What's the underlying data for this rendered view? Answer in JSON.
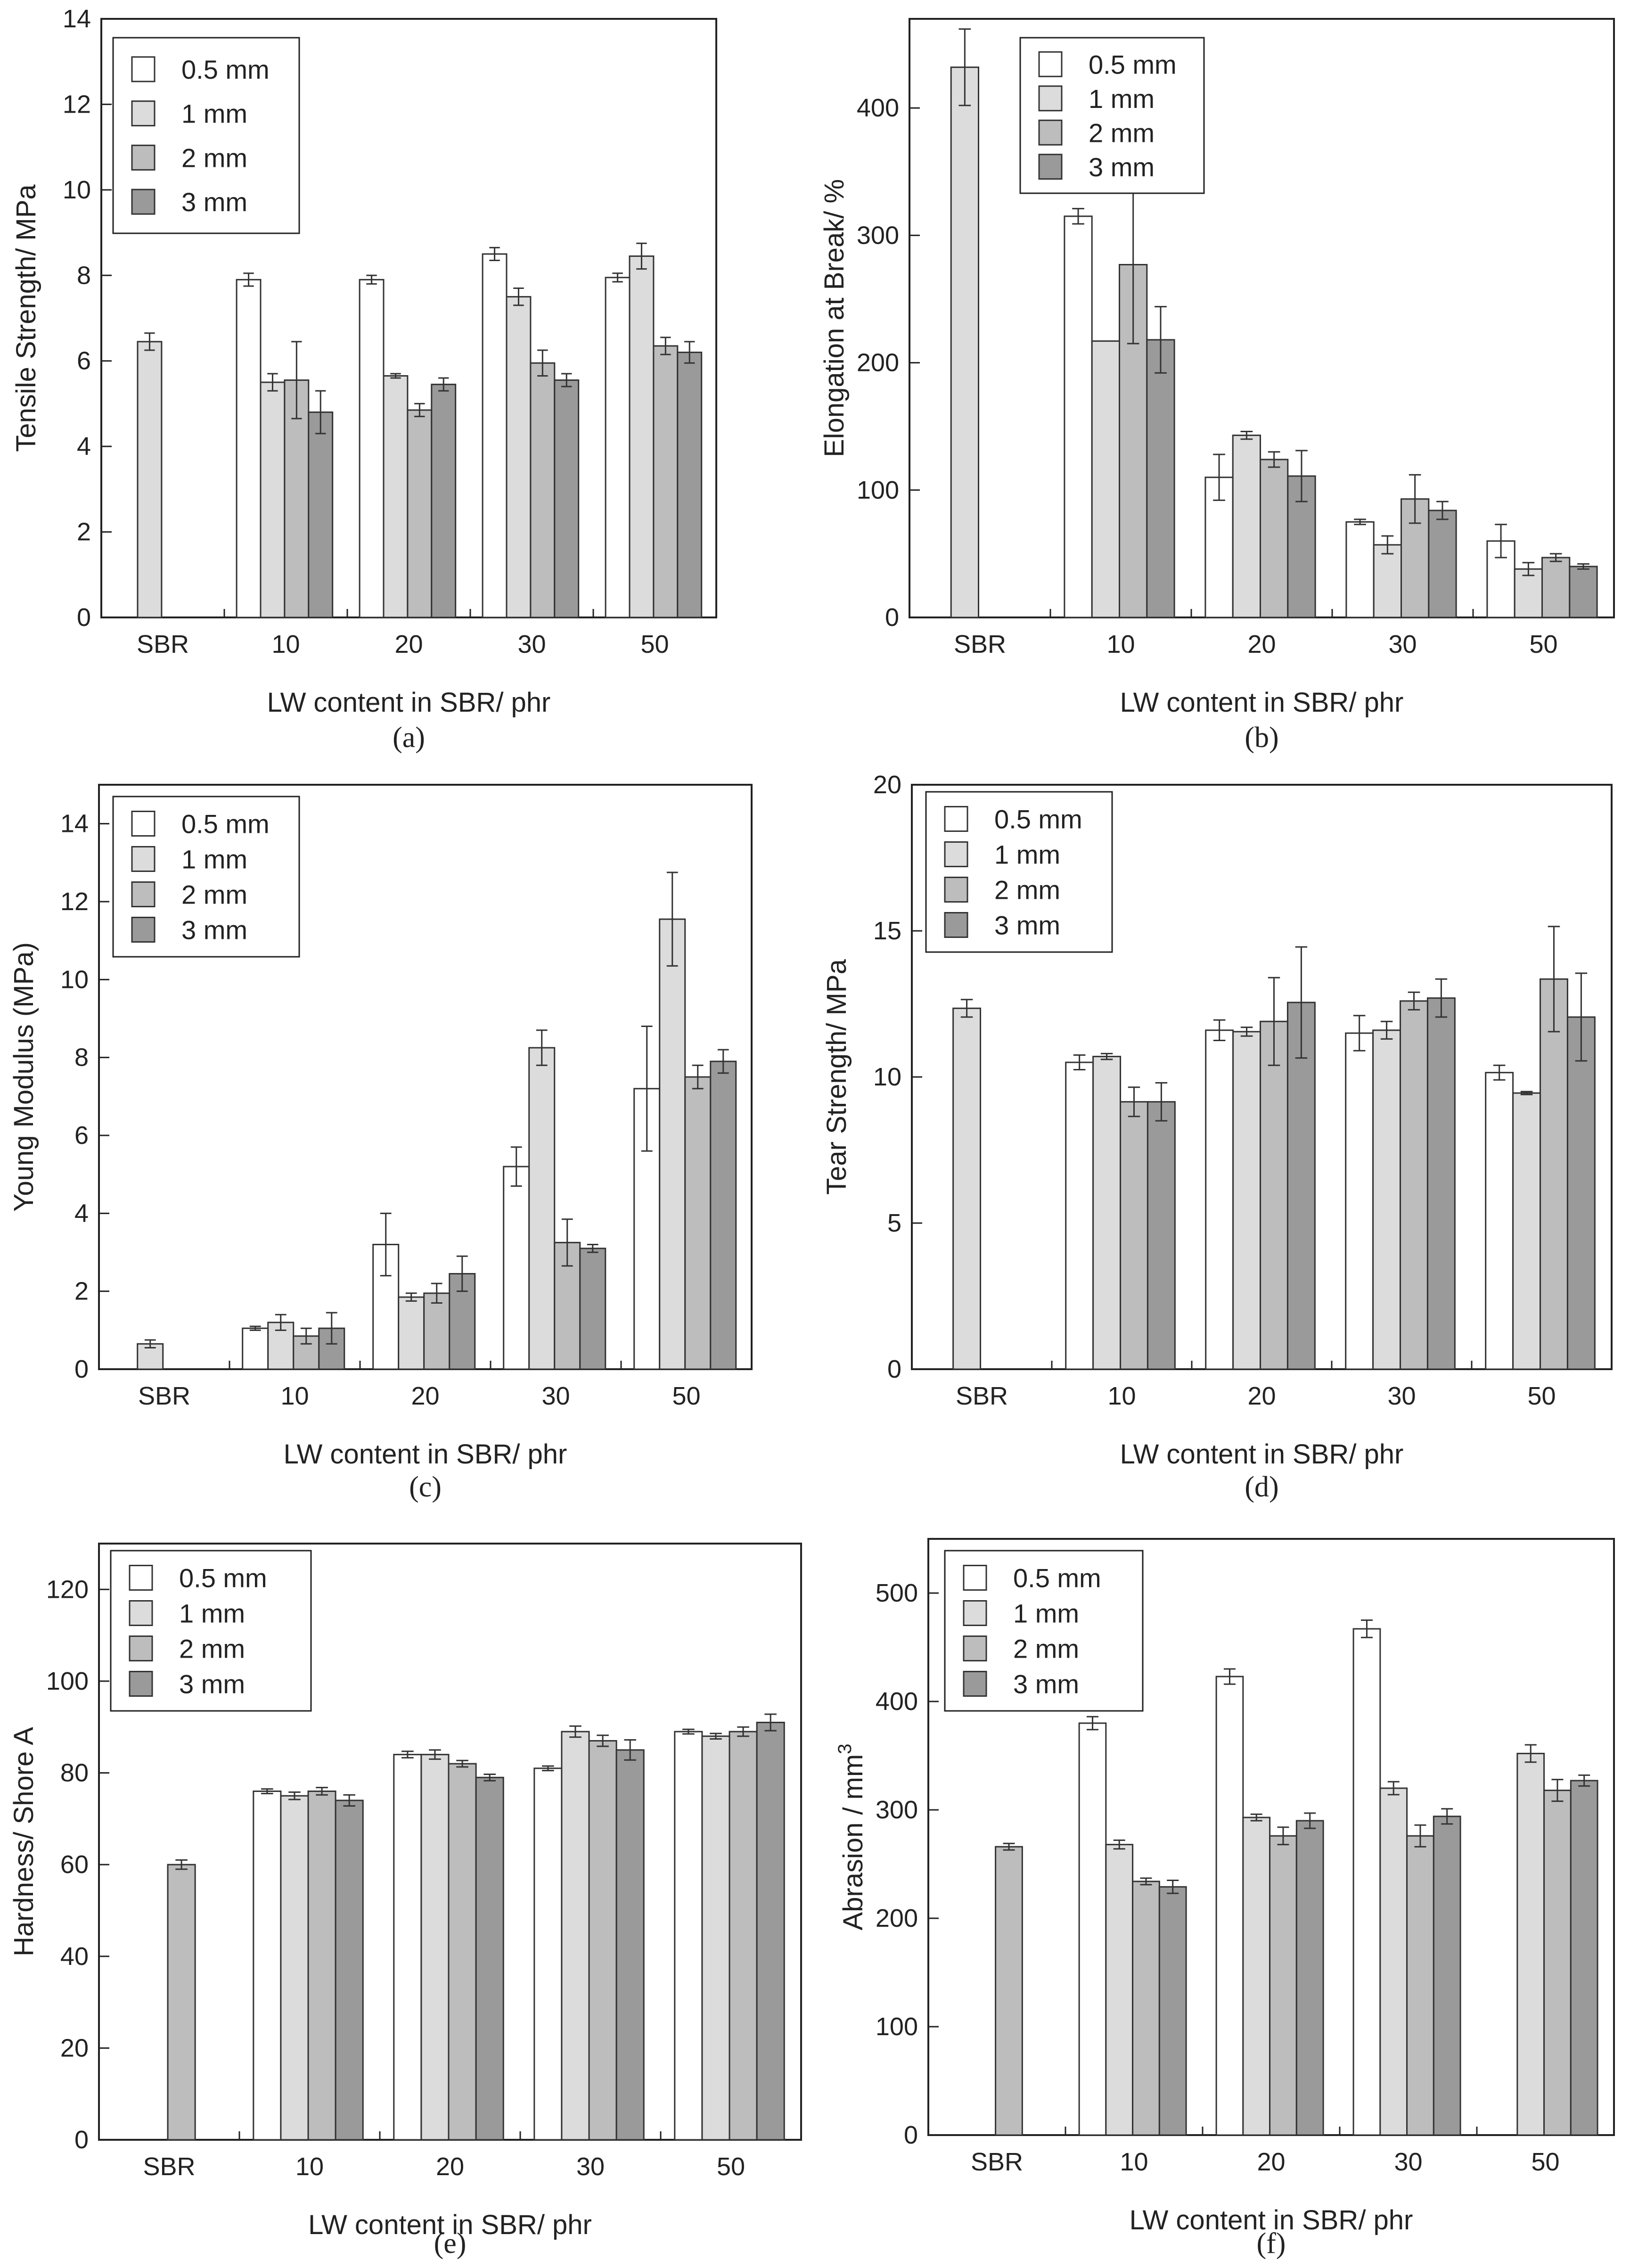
{
  "figure": {
    "series_names": [
      "0.5 mm",
      "1 mm",
      "2 mm",
      "3 mm"
    ],
    "series_colors": [
      "#ffffff",
      "#dcdcdc",
      "#bdbdbd",
      "#9a9a9a"
    ],
    "categories": [
      "SBR",
      "10",
      "20",
      "30",
      "50"
    ]
  },
  "chart_data": [
    {
      "id": "a",
      "type": "bar",
      "caption": "(a)",
      "xlabel": "LW content in SBR/ phr",
      "ylabel": "Tensile Strength/ MPa",
      "ylim": [
        0,
        14
      ],
      "yticks": [
        0,
        2,
        4,
        6,
        8,
        10,
        12,
        14
      ],
      "categories": [
        "SBR",
        "10",
        "20",
        "30",
        "50"
      ],
      "legend_entries": [
        "0.5 mm",
        "1 mm",
        "2 mm",
        "3 mm"
      ],
      "series": [
        {
          "name": "0.5 mm",
          "values": [
            null,
            7.9,
            7.9,
            8.5,
            7.95
          ],
          "errors": [
            null,
            0.15,
            0.1,
            0.15,
            0.1
          ]
        },
        {
          "name": "1 mm",
          "values": [
            6.45,
            5.5,
            5.65,
            7.5,
            8.45
          ],
          "errors": [
            0.2,
            0.2,
            0.05,
            0.2,
            0.3
          ]
        },
        {
          "name": "2 mm",
          "values": [
            null,
            5.55,
            4.85,
            5.95,
            6.35
          ],
          "errors": [
            null,
            0.9,
            0.15,
            0.3,
            0.2
          ]
        },
        {
          "name": "3 mm",
          "values": [
            null,
            4.8,
            5.45,
            5.55,
            6.2
          ],
          "errors": [
            null,
            0.5,
            0.15,
            0.15,
            0.25
          ]
        }
      ]
    },
    {
      "id": "b",
      "type": "bar",
      "caption": "(b)",
      "xlabel": "LW content in SBR/ phr",
      "ylabel": "Elongation at Break/ %",
      "ylim": [
        0,
        470
      ],
      "yticks": [
        0,
        100,
        200,
        300,
        400
      ],
      "categories": [
        "SBR",
        "10",
        "20",
        "30",
        "50"
      ],
      "legend_entries": [
        "0.5 mm",
        "1 mm",
        "2 mm",
        "3 mm"
      ],
      "series": [
        {
          "name": "0.5 mm",
          "values": [
            null,
            315,
            110,
            75,
            60
          ],
          "errors": [
            null,
            6,
            18,
            2,
            13
          ]
        },
        {
          "name": "1 mm",
          "values": [
            432,
            217,
            143,
            57,
            38
          ],
          "errors": [
            30,
            null,
            3,
            7,
            5
          ]
        },
        {
          "name": "2 mm",
          "values": [
            null,
            277,
            124,
            93,
            47
          ],
          "errors": [
            null,
            62,
            6,
            19,
            3
          ]
        },
        {
          "name": "3 mm",
          "values": [
            null,
            218,
            111,
            84,
            40
          ],
          "errors": [
            null,
            26,
            20,
            7,
            2
          ]
        }
      ]
    },
    {
      "id": "c",
      "type": "bar",
      "caption": "(c)",
      "xlabel": "LW content in SBR/ phr",
      "ylabel": "Young Modulus (MPa)",
      "ylim": [
        0,
        15
      ],
      "yticks": [
        0,
        2,
        4,
        6,
        8,
        10,
        12,
        14
      ],
      "categories": [
        "SBR",
        "10",
        "20",
        "30",
        "50"
      ],
      "legend_entries": [
        "0.5 mm",
        "1 mm",
        "2 mm",
        "3 mm"
      ],
      "series": [
        {
          "name": "0.5 mm",
          "values": [
            null,
            1.05,
            3.2,
            5.2,
            7.2
          ],
          "errors": [
            null,
            0.05,
            0.8,
            0.5,
            1.6
          ]
        },
        {
          "name": "1 mm",
          "values": [
            0.65,
            1.2,
            1.85,
            8.25,
            11.55
          ],
          "errors": [
            0.1,
            0.2,
            0.1,
            0.45,
            1.2
          ]
        },
        {
          "name": "2 mm",
          "values": [
            null,
            0.85,
            1.95,
            3.25,
            7.5
          ],
          "errors": [
            null,
            0.2,
            0.25,
            0.6,
            0.3
          ]
        },
        {
          "name": "3 mm",
          "values": [
            null,
            1.05,
            2.45,
            3.1,
            7.9
          ],
          "errors": [
            null,
            0.4,
            0.45,
            0.1,
            0.3
          ]
        }
      ]
    },
    {
      "id": "d",
      "type": "bar",
      "caption": "(d)",
      "xlabel": "LW content in SBR/ phr",
      "ylabel": "Tear Strength/ MPa",
      "ylim": [
        0,
        20
      ],
      "yticks": [
        0,
        5,
        10,
        15,
        20
      ],
      "categories": [
        "SBR",
        "10",
        "20",
        "30",
        "50"
      ],
      "legend_entries": [
        "0.5 mm",
        "1 mm",
        "2 mm",
        "3 mm"
      ],
      "series": [
        {
          "name": "0.5 mm",
          "values": [
            null,
            10.5,
            11.6,
            11.5,
            10.15
          ],
          "errors": [
            null,
            0.25,
            0.35,
            0.6,
            0.25
          ]
        },
        {
          "name": "1 mm",
          "values": [
            12.35,
            10.7,
            11.55,
            11.6,
            9.45
          ],
          "errors": [
            0.3,
            0.1,
            0.15,
            0.3,
            0.05
          ]
        },
        {
          "name": "2 mm",
          "values": [
            null,
            9.15,
            11.9,
            12.6,
            13.35
          ],
          "errors": [
            null,
            0.5,
            1.5,
            0.3,
            1.8
          ]
        },
        {
          "name": "3 mm",
          "values": [
            null,
            9.15,
            12.55,
            12.7,
            12.05
          ],
          "errors": [
            null,
            0.65,
            1.9,
            0.65,
            1.5
          ]
        }
      ]
    },
    {
      "id": "e",
      "type": "bar",
      "caption": "(e)",
      "xlabel": "LW content in SBR/ phr",
      "ylabel": "Hardness/ Shore A",
      "ylim": [
        0,
        130
      ],
      "yticks": [
        0,
        20,
        40,
        60,
        80,
        100,
        120
      ],
      "categories": [
        "SBR",
        "10",
        "20",
        "30",
        "50"
      ],
      "legend_entries": [
        "0.5 mm",
        "1 mm",
        "2 mm",
        "3 mm"
      ],
      "series": [
        {
          "name": "0.5 mm",
          "values": [
            null,
            76,
            84,
            81,
            89
          ],
          "errors": [
            null,
            0.5,
            0.7,
            0.5,
            0.5
          ]
        },
        {
          "name": "1 mm",
          "values": [
            null,
            75,
            84,
            89,
            88
          ],
          "errors": [
            null,
            0.8,
            1,
            1.2,
            0.6
          ]
        },
        {
          "name": "2 mm",
          "values": [
            60,
            76,
            82,
            87,
            89
          ],
          "errors": [
            1,
            0.8,
            0.7,
            1.2,
            1
          ]
        },
        {
          "name": "3 mm",
          "values": [
            null,
            74,
            79,
            85,
            91
          ],
          "errors": [
            null,
            1.2,
            0.7,
            2.2,
            1.8
          ]
        }
      ]
    },
    {
      "id": "f",
      "type": "bar",
      "caption": "(f)",
      "xlabel": "LW content in SBR/ phr",
      "ylabel_main": "Abrasion / mm",
      "ylabel_sup": "3",
      "ylim": [
        0,
        550
      ],
      "yticks": [
        0,
        100,
        200,
        300,
        400,
        500
      ],
      "categories": [
        "SBR",
        "10",
        "20",
        "30",
        "50"
      ],
      "legend_entries": [
        "0.5 mm",
        "1 mm",
        "2 mm",
        "3 mm"
      ],
      "series": [
        {
          "name": "0.5 mm",
          "values": [
            null,
            380,
            423,
            467,
            null
          ],
          "errors": [
            null,
            6,
            7,
            8,
            null
          ]
        },
        {
          "name": "1 mm",
          "values": [
            null,
            268,
            293,
            320,
            352
          ],
          "errors": [
            null,
            4,
            3,
            6,
            8
          ]
        },
        {
          "name": "2 mm",
          "values": [
            266,
            234,
            276,
            276,
            318
          ],
          "errors": [
            3,
            3,
            8,
            10,
            10
          ]
        },
        {
          "name": "3 mm",
          "values": [
            null,
            229,
            290,
            294,
            327
          ],
          "errors": [
            null,
            6,
            7,
            7,
            5
          ]
        }
      ]
    }
  ]
}
